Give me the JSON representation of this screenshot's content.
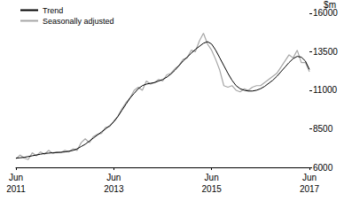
{
  "chart_data": {
    "type": "line",
    "categories": [
      "Jun 2011",
      null,
      null,
      null,
      null,
      null,
      null,
      null,
      null,
      null,
      null,
      null,
      null,
      null,
      null,
      null,
      null,
      null,
      null,
      null,
      null,
      null,
      null,
      null,
      "Jun 2013",
      null,
      null,
      null,
      null,
      null,
      null,
      null,
      null,
      null,
      null,
      null,
      null,
      null,
      null,
      null,
      null,
      null,
      null,
      null,
      null,
      null,
      null,
      null,
      "Jun 2015",
      null,
      null,
      null,
      null,
      null,
      null,
      null,
      null,
      null,
      null,
      null,
      null,
      null,
      null,
      null,
      null,
      null,
      null,
      null,
      null,
      null,
      null,
      null,
      "Jun 2017"
    ],
    "series": [
      {
        "name": "Trend",
        "color": "#000000",
        "values": [
          6600,
          6620,
          6650,
          6700,
          6750,
          6800,
          6850,
          6900,
          6920,
          6950,
          6960,
          6980,
          7000,
          7050,
          7100,
          7200,
          7350,
          7500,
          7700,
          7900,
          8100,
          8300,
          8500,
          8700,
          8950,
          9300,
          9700,
          10100,
          10500,
          10800,
          11100,
          11300,
          11400,
          11450,
          11500,
          11600,
          11700,
          11850,
          12050,
          12300,
          12600,
          12900,
          13150,
          13400,
          13650,
          13850,
          14050,
          14150,
          14000,
          13600,
          13100,
          12600,
          12100,
          11650,
          11300,
          11100,
          11000,
          10950,
          10950,
          11000,
          11100,
          11250,
          11450,
          11650,
          11900,
          12200,
          12500,
          12800,
          13050,
          13200,
          13150,
          12900,
          12350
        ]
      },
      {
        "name": "Seasonally adjusted",
        "color": "#a6a6a6",
        "values": [
          6550,
          6800,
          6600,
          6500,
          6950,
          6750,
          7000,
          6850,
          7100,
          6900,
          7000,
          6950,
          7100,
          7000,
          7200,
          7100,
          7600,
          7850,
          7600,
          8000,
          8150,
          8200,
          8600,
          8650,
          9000,
          9300,
          9800,
          10200,
          10500,
          11000,
          11200,
          11000,
          11600,
          11400,
          11500,
          11700,
          11600,
          12000,
          12100,
          12400,
          12600,
          13000,
          13100,
          13600,
          13500,
          14200,
          14700,
          14000,
          13600,
          13000,
          12300,
          11300,
          11200,
          11300,
          11000,
          10900,
          11100,
          11000,
          11200,
          11300,
          11300,
          11500,
          11700,
          11900,
          12100,
          12500,
          12900,
          13300,
          13100,
          13600,
          12800,
          12800,
          12200
        ]
      }
    ],
    "y_label": "$m",
    "ylim": [
      6000,
      16000
    ],
    "yticks": [
      6000,
      8500,
      11000,
      13500,
      16000
    ],
    "grid": false,
    "legend": "upper left"
  }
}
